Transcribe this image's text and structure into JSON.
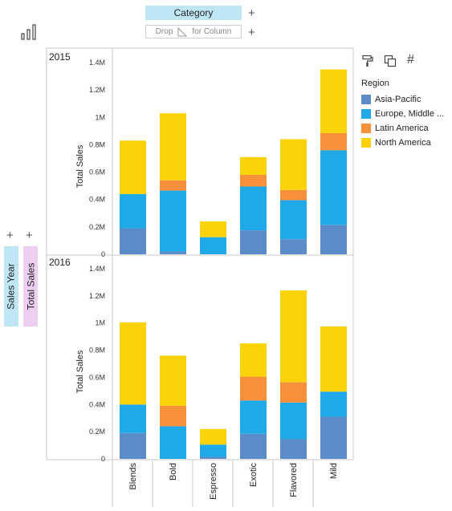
{
  "toolbar": {
    "chart_icon": "bar-chart-icon",
    "category_label": "Category",
    "drop_left": "Drop",
    "drop_right": "for Column",
    "add_symbol": "+"
  },
  "shelves": {
    "row1_label": "Sales Year",
    "row2_label": "Total Sales"
  },
  "tools": {
    "format_icon": "paint-roller-icon",
    "copy_icon": "copy-icon",
    "hash_icon": "hash-icon",
    "hash_symbol": "#"
  },
  "legend": {
    "title": "Region",
    "items": [
      {
        "label": "Asia-Pacific",
        "color": "#5b8bc9"
      },
      {
        "label": "Europe, Middle ...",
        "color": "#1fa9e8"
      },
      {
        "label": "Latin America",
        "color": "#f7903a"
      },
      {
        "label": "North America",
        "color": "#fad30b"
      }
    ]
  },
  "chart_data": {
    "type": "bar",
    "stacked": true,
    "categories": [
      "Blends",
      "Bold",
      "Espresso",
      "Exotic",
      "Flavored",
      "Mild"
    ],
    "ylabel": "Total Sales",
    "ylim": [
      0,
      1400000
    ],
    "yticks": [
      "0",
      "0.2M",
      "0.4M",
      "0.6M",
      "0.8M",
      "1M",
      "1.2M",
      "1.4M"
    ],
    "grid": false,
    "legend_position": "right",
    "panels": [
      {
        "label": "2015",
        "series": [
          {
            "name": "Asia-Pacific",
            "values": [
              190000,
              20000,
              0,
              175000,
              110000,
              215000
            ]
          },
          {
            "name": "Europe, Middle ...",
            "values": [
              250000,
              445000,
              125000,
              320000,
              285000,
              545000
            ]
          },
          {
            "name": "Latin America",
            "values": [
              0,
              75000,
              0,
              85000,
              75000,
              125000
            ]
          },
          {
            "name": "North America",
            "values": [
              390000,
              490000,
              115000,
              130000,
              370000,
              465000
            ]
          }
        ]
      },
      {
        "label": "2016",
        "series": [
          {
            "name": "Asia-Pacific",
            "values": [
              190000,
              0,
              15000,
              185000,
              145000,
              310000
            ]
          },
          {
            "name": "Europe, Middle ...",
            "values": [
              210000,
              240000,
              90000,
              245000,
              270000,
              185000
            ]
          },
          {
            "name": "Latin America",
            "values": [
              0,
              150000,
              0,
              175000,
              150000,
              0
            ]
          },
          {
            "name": "North America",
            "values": [
              605000,
              370000,
              115000,
              245000,
              675000,
              480000
            ]
          }
        ]
      }
    ]
  }
}
